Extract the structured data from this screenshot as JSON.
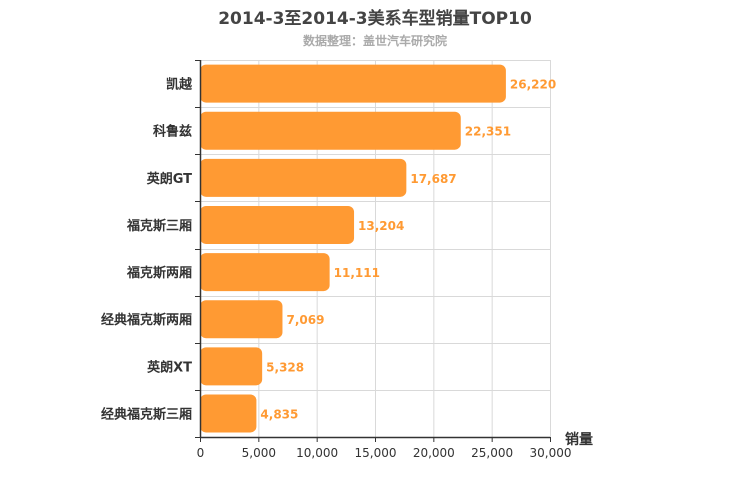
{
  "chart_data": {
    "type": "bar",
    "orientation": "horizontal",
    "title": "2014-3至2014-3美系车型销量TOP10",
    "subtitle": "数据整理：盖世汽车研究院",
    "categories": [
      "凯越",
      "科鲁兹",
      "英朗GT",
      "福克斯三厢",
      "福克斯两厢",
      "经典福克斯两厢",
      "英朗XT",
      "经典福克斯三厢"
    ],
    "values": [
      26220,
      22351,
      17687,
      13204,
      11111,
      7069,
      5328,
      4835
    ],
    "value_labels": [
      "26,220",
      "22,351",
      "17,687",
      "13,204",
      "11,111",
      "7,069",
      "5,328",
      "4,835"
    ],
    "xlabel": "销量",
    "xlim": [
      0,
      30000
    ],
    "ticks": [
      0,
      5000,
      10000,
      15000,
      20000,
      25000,
      30000
    ],
    "tick_labels": [
      "0",
      "5,000",
      "10,000",
      "15,000",
      "20,000",
      "25,000",
      "30,000"
    ],
    "bar_color": "#ff9a33",
    "label_color": "#ff9a33",
    "grid": true
  }
}
